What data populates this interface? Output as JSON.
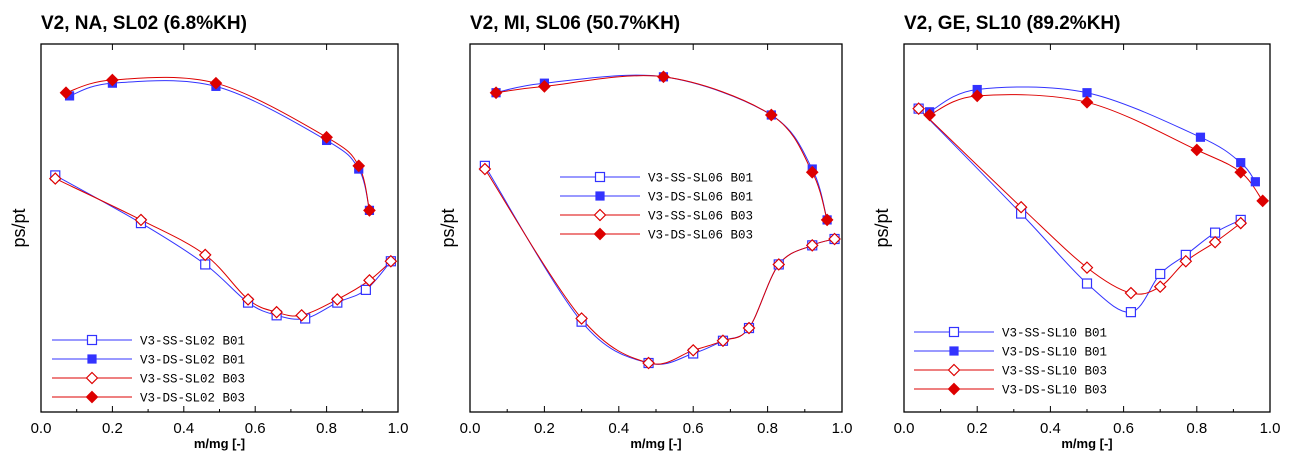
{
  "chart_data": [
    {
      "type": "line",
      "title": "V2, NA, SL02 (6.8%KH)",
      "xlabel": "m/mg [-]",
      "ylabel": "ps/pt",
      "xlim": [
        0.0,
        1.0
      ],
      "xticks": [
        "0.0",
        "0.2",
        "0.4",
        "0.6",
        "0.8",
        "1.0"
      ],
      "ylim": [
        0,
        1
      ],
      "yticks_shown": false,
      "legend_position": "bottom-left",
      "series": [
        {
          "name": "V3-SS-SL02  B01",
          "color": "#3333ff",
          "marker": "square-open",
          "x": [
            0.04,
            0.28,
            0.46,
            0.58,
            0.66,
            0.74,
            0.83,
            0.91,
            0.98
          ],
          "y": [
            0.7,
            0.55,
            0.42,
            0.3,
            0.26,
            0.25,
            0.3,
            0.34,
            0.43
          ]
        },
        {
          "name": "V3-DS-SL02  B01",
          "color": "#3333ff",
          "marker": "square-filled",
          "x": [
            0.08,
            0.2,
            0.49,
            0.8,
            0.89,
            0.92
          ],
          "y": [
            0.95,
            0.99,
            0.98,
            0.81,
            0.72,
            0.59
          ]
        },
        {
          "name": "V3-SS-SL02  B03",
          "color": "#dd0000",
          "marker": "diamond-open",
          "x": [
            0.04,
            0.28,
            0.46,
            0.58,
            0.66,
            0.73,
            0.83,
            0.92,
            0.98
          ],
          "y": [
            0.69,
            0.56,
            0.45,
            0.31,
            0.27,
            0.26,
            0.31,
            0.37,
            0.43
          ]
        },
        {
          "name": "V3-DS-SL02  B03",
          "color": "#dd0000",
          "marker": "diamond-filled",
          "x": [
            0.07,
            0.2,
            0.49,
            0.8,
            0.89,
            0.92
          ],
          "y": [
            0.96,
            1.0,
            0.99,
            0.82,
            0.73,
            0.59
          ]
        }
      ]
    },
    {
      "type": "line",
      "title": "V2, MI, SL06 (50.7%KH)",
      "xlabel": "m/mg [-]",
      "ylabel": "ps/pt",
      "xlim": [
        0.0,
        1.0
      ],
      "xticks": [
        "0.0",
        "0.2",
        "0.4",
        "0.6",
        "0.8",
        "1.0"
      ],
      "ylim": [
        0,
        1
      ],
      "yticks_shown": false,
      "legend_position": "center",
      "series": [
        {
          "name": "V3-SS-SL06  B01",
          "color": "#3333ff",
          "marker": "square-open",
          "x": [
            0.04,
            0.3,
            0.48,
            0.6,
            0.68,
            0.75,
            0.83,
            0.92,
            0.98
          ],
          "y": [
            0.73,
            0.24,
            0.11,
            0.14,
            0.18,
            0.22,
            0.42,
            0.48,
            0.5
          ]
        },
        {
          "name": "V3-DS-SL06  B01",
          "color": "#3333ff",
          "marker": "square-filled",
          "x": [
            0.07,
            0.2,
            0.52,
            0.81,
            0.92,
            0.96
          ],
          "y": [
            0.96,
            0.99,
            1.01,
            0.89,
            0.72,
            0.56
          ]
        },
        {
          "name": "V3-SS-SL06  B03",
          "color": "#dd0000",
          "marker": "diamond-open",
          "x": [
            0.04,
            0.3,
            0.48,
            0.6,
            0.68,
            0.75,
            0.83,
            0.92,
            0.98
          ],
          "y": [
            0.72,
            0.25,
            0.11,
            0.15,
            0.18,
            0.22,
            0.42,
            0.48,
            0.5
          ]
        },
        {
          "name": "V3-DS-SL06  B03",
          "color": "#dd0000",
          "marker": "diamond-filled",
          "x": [
            0.07,
            0.2,
            0.52,
            0.81,
            0.92,
            0.96
          ],
          "y": [
            0.96,
            0.98,
            1.01,
            0.89,
            0.71,
            0.56
          ]
        }
      ]
    },
    {
      "type": "line",
      "title": "V2, GE, SL10 (89.2%KH)",
      "xlabel": "m/mg [-]",
      "ylabel": "ps/pt",
      "xlim": [
        0.0,
        1.0
      ],
      "xticks": [
        "0.0",
        "0.2",
        "0.4",
        "0.6",
        "0.8",
        "1.0"
      ],
      "ylim": [
        0,
        1
      ],
      "yticks_shown": false,
      "legend_position": "bottom-left",
      "series": [
        {
          "name": "V3-SS-SL10  B01",
          "color": "#3333ff",
          "marker": "square-open",
          "x": [
            0.04,
            0.32,
            0.5,
            0.62,
            0.7,
            0.77,
            0.85,
            0.92
          ],
          "y": [
            0.91,
            0.58,
            0.36,
            0.27,
            0.39,
            0.45,
            0.52,
            0.56
          ]
        },
        {
          "name": "V3-DS-SL10  B01",
          "color": "#3333ff",
          "marker": "square-filled",
          "x": [
            0.07,
            0.2,
            0.5,
            0.81,
            0.92,
            0.96
          ],
          "y": [
            0.9,
            0.97,
            0.96,
            0.82,
            0.74,
            0.68
          ]
        },
        {
          "name": "V3-SS-SL10  B03",
          "color": "#dd0000",
          "marker": "diamond-open",
          "x": [
            0.04,
            0.32,
            0.5,
            0.62,
            0.7,
            0.77,
            0.85,
            0.92
          ],
          "y": [
            0.91,
            0.6,
            0.41,
            0.33,
            0.35,
            0.43,
            0.49,
            0.55
          ]
        },
        {
          "name": "V3-DS-SL10  B03",
          "color": "#dd0000",
          "marker": "diamond-filled",
          "x": [
            0.07,
            0.2,
            0.5,
            0.8,
            0.92,
            0.98
          ],
          "y": [
            0.89,
            0.95,
            0.93,
            0.78,
            0.71,
            0.62
          ]
        }
      ]
    }
  ]
}
